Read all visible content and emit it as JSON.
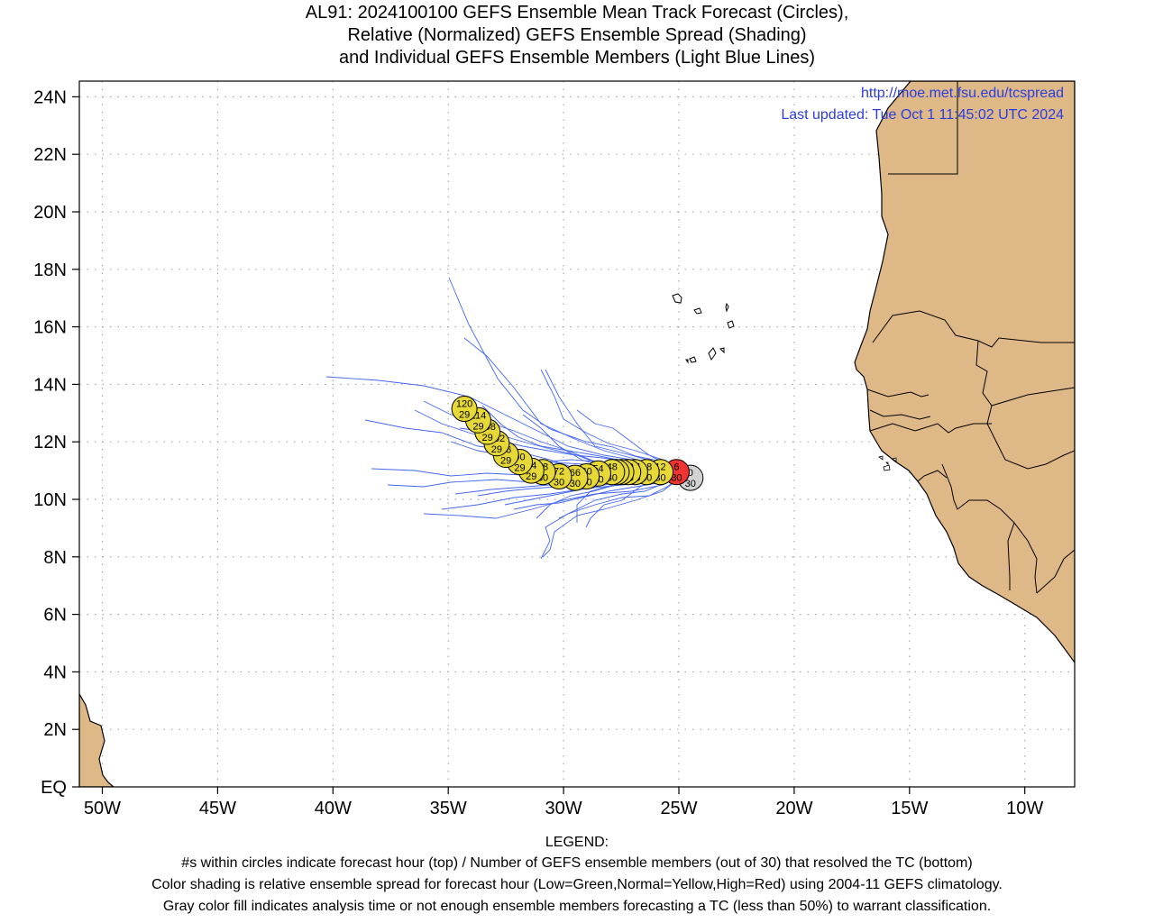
{
  "title": {
    "line1": "AL91: 2024100100 GEFS Ensemble Mean Track Forecast (Circles),",
    "line2": "Relative (Normalized) GEFS Ensemble Spread (Shading)",
    "line3": "and Individual GEFS Ensemble Members (Light Blue Lines)"
  },
  "header_right": {
    "url": "http://moe.met.fsu.edu/tcspread",
    "updated": "Last updated: Tue Oct  1 11:45:02 UTC 2024"
  },
  "axes": {
    "y_ticks": [
      {
        "lat": 24,
        "label": "24N"
      },
      {
        "lat": 22,
        "label": "22N"
      },
      {
        "lat": 20,
        "label": "20N"
      },
      {
        "lat": 18,
        "label": "18N"
      },
      {
        "lat": 16,
        "label": "16N"
      },
      {
        "lat": 14,
        "label": "14N"
      },
      {
        "lat": 12,
        "label": "12N"
      },
      {
        "lat": 10,
        "label": "10N"
      },
      {
        "lat": 8,
        "label": "8N"
      },
      {
        "lat": 6,
        "label": "6N"
      },
      {
        "lat": 4,
        "label": "4N"
      },
      {
        "lat": 2,
        "label": "2N"
      },
      {
        "lat": 0,
        "label": "EQ"
      }
    ],
    "x_ticks": [
      {
        "lon": -50,
        "label": "50W"
      },
      {
        "lon": -45,
        "label": "45W"
      },
      {
        "lon": -40,
        "label": "40W"
      },
      {
        "lon": -35,
        "label": "35W"
      },
      {
        "lon": -30,
        "label": "30W"
      },
      {
        "lon": -25,
        "label": "25W"
      },
      {
        "lon": -20,
        "label": "20W"
      },
      {
        "lon": -15,
        "label": "15W"
      },
      {
        "lon": -10,
        "label": "10W"
      }
    ]
  },
  "colors": {
    "land": "#deb887",
    "member_tracks": "#4466ee",
    "normal_spread": "#e6d836",
    "high_spread": "#ee3333",
    "analysis_gray": "#d3d3d3",
    "link_text": "#2b3de0",
    "grid": "#a9a9a9"
  },
  "mean_track": [
    {
      "hour": "0",
      "members": "30",
      "lon": -24.5,
      "lat": 10.75,
      "fill": "gray"
    },
    {
      "hour": "6",
      "members": "30",
      "lon": -25.1,
      "lat": 10.95,
      "fill": "red"
    },
    {
      "hour": "12",
      "members": "30",
      "lon": -25.8,
      "lat": 10.95,
      "fill": "yellow"
    },
    {
      "hour": "18",
      "members": "30",
      "lon": -26.4,
      "lat": 10.95,
      "fill": "yellow"
    },
    {
      "hour": "24",
      "members": "30",
      "lon": -26.9,
      "lat": 10.95,
      "fill": "yellow"
    },
    {
      "hour": "30",
      "members": "30",
      "lon": -27.2,
      "lat": 10.95,
      "fill": "yellow"
    },
    {
      "hour": "36",
      "members": "30",
      "lon": -27.5,
      "lat": 10.95,
      "fill": "yellow"
    },
    {
      "hour": "42",
      "members": "30",
      "lon": -27.7,
      "lat": 10.95,
      "fill": "yellow"
    },
    {
      "hour": "48",
      "members": "30",
      "lon": -27.9,
      "lat": 10.95,
      "fill": "yellow"
    },
    {
      "hour": "54",
      "members": "30",
      "lon": -28.5,
      "lat": 10.9,
      "fill": "yellow"
    },
    {
      "hour": "60",
      "members": "30",
      "lon": -29.0,
      "lat": 10.8,
      "fill": "yellow"
    },
    {
      "hour": "66",
      "members": "30",
      "lon": -29.5,
      "lat": 10.75,
      "fill": "yellow"
    },
    {
      "hour": "72",
      "members": "30",
      "lon": -30.2,
      "lat": 10.8,
      "fill": "yellow"
    },
    {
      "hour": "78",
      "members": "30",
      "lon": -30.9,
      "lat": 10.95,
      "fill": "yellow"
    },
    {
      "hour": "84",
      "members": "29",
      "lon": -31.4,
      "lat": 11.0,
      "fill": "yellow"
    },
    {
      "hour": "90",
      "members": "29",
      "lon": -31.9,
      "lat": 11.3,
      "fill": "yellow"
    },
    {
      "hour": "96",
      "members": "29",
      "lon": -32.5,
      "lat": 11.55,
      "fill": "yellow"
    },
    {
      "hour": "102",
      "members": "29",
      "lon": -32.9,
      "lat": 11.95,
      "fill": "yellow"
    },
    {
      "hour": "108",
      "members": "29",
      "lon": -33.3,
      "lat": 12.35,
      "fill": "yellow"
    },
    {
      "hour": "114",
      "members": "29",
      "lon": -33.7,
      "lat": 12.75,
      "fill": "yellow"
    },
    {
      "hour": "120",
      "members": "29",
      "lon": -34.3,
      "lat": 13.15,
      "fill": "yellow"
    }
  ],
  "legend": {
    "heading": "LEGEND:",
    "line1": "#s within circles indicate forecast hour (top) / Number of GEFS ensemble members (out of 30) that resolved the TC (bottom)",
    "line2": "Color shading is relative ensemble spread for forecast hour (Low=Green,Normal=Yellow,High=Red) using 2004-11 GEFS climatology.",
    "line3": "Gray color fill indicates analysis time or not enough ensemble members forecasting a TC (less than 50%) to warrant classification."
  }
}
